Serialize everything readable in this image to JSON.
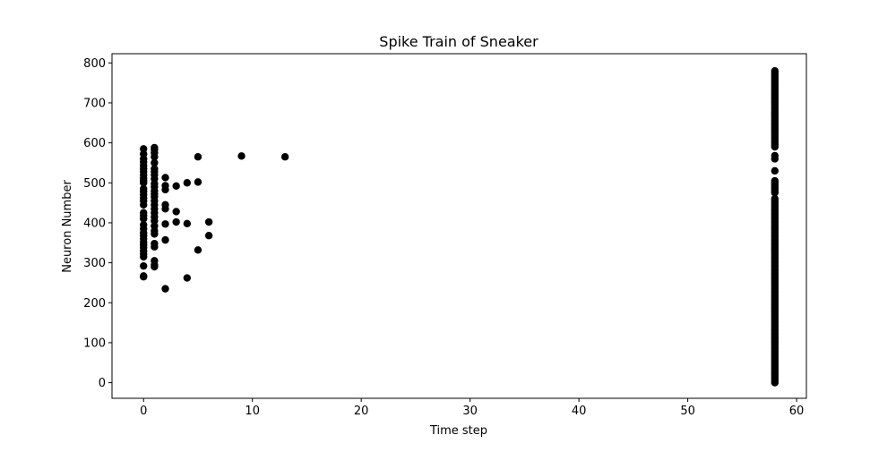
{
  "chart_data": {
    "type": "scatter",
    "title": "Spike Train of Sneaker",
    "xlabel": "Time step",
    "ylabel": "Neuron Number",
    "xlim": [
      -2.9,
      60.9
    ],
    "ylim": [
      -39,
      823
    ],
    "xticks": [
      0,
      10,
      20,
      30,
      40,
      50,
      60
    ],
    "yticks": [
      0,
      100,
      200,
      300,
      400,
      500,
      600,
      700,
      800
    ],
    "xtick_labels": [
      "0",
      "10",
      "20",
      "30",
      "40",
      "50",
      "60"
    ],
    "ytick_labels": [
      "0",
      "100",
      "200",
      "300",
      "400",
      "500",
      "600",
      "700",
      "800"
    ],
    "grid": false,
    "marker_color": "#000000",
    "series": [
      {
        "points": [
          [
            0,
            265
          ],
          [
            0,
            267
          ],
          [
            0,
            292
          ],
          [
            0,
            315
          ],
          [
            0,
            322
          ],
          [
            0,
            330
          ],
          [
            0,
            338
          ],
          [
            0,
            345
          ],
          [
            0,
            352
          ],
          [
            0,
            360
          ],
          [
            0,
            368
          ],
          [
            0,
            375
          ],
          [
            0,
            385
          ],
          [
            0,
            395
          ],
          [
            0,
            410
          ],
          [
            0,
            418
          ],
          [
            0,
            425
          ],
          [
            0,
            445
          ],
          [
            0,
            455
          ],
          [
            0,
            462
          ],
          [
            0,
            470
          ],
          [
            0,
            478
          ],
          [
            0,
            485
          ],
          [
            0,
            500
          ],
          [
            0,
            505
          ],
          [
            0,
            512
          ],
          [
            0,
            520
          ],
          [
            0,
            528
          ],
          [
            0,
            535
          ],
          [
            0,
            543
          ],
          [
            0,
            552
          ],
          [
            0,
            560
          ],
          [
            0,
            572
          ],
          [
            0,
            585
          ],
          [
            1,
            290
          ],
          [
            1,
            295
          ],
          [
            1,
            305
          ],
          [
            1,
            340
          ],
          [
            1,
            348
          ],
          [
            1,
            372
          ],
          [
            1,
            380
          ],
          [
            1,
            392
          ],
          [
            1,
            405
          ],
          [
            1,
            415
          ],
          [
            1,
            425
          ],
          [
            1,
            435
          ],
          [
            1,
            445
          ],
          [
            1,
            455
          ],
          [
            1,
            465
          ],
          [
            1,
            472
          ],
          [
            1,
            480
          ],
          [
            1,
            490
          ],
          [
            1,
            498
          ],
          [
            1,
            510
          ],
          [
            1,
            520
          ],
          [
            1,
            528
          ],
          [
            1,
            535
          ],
          [
            1,
            550
          ],
          [
            1,
            565
          ],
          [
            1,
            575
          ],
          [
            1,
            583
          ],
          [
            1,
            588
          ],
          [
            2,
            235
          ],
          [
            2,
            357
          ],
          [
            2,
            397
          ],
          [
            2,
            435
          ],
          [
            2,
            445
          ],
          [
            2,
            483
          ],
          [
            2,
            493
          ],
          [
            2,
            513
          ],
          [
            3,
            402
          ],
          [
            3,
            428
          ],
          [
            3,
            492
          ],
          [
            4,
            262
          ],
          [
            4,
            398
          ],
          [
            4,
            500
          ],
          [
            5,
            332
          ],
          [
            5,
            502
          ],
          [
            5,
            565
          ],
          [
            6,
            368
          ],
          [
            6,
            402
          ],
          [
            9,
            567
          ],
          [
            13,
            565
          ]
        ]
      }
    ],
    "dense_column": {
      "x": 58,
      "ranges": [
        [
          0,
          460
        ],
        [
          475,
          505
        ],
        [
          590,
          783
        ]
      ],
      "extra_y": [
        530,
        560,
        568
      ]
    }
  }
}
